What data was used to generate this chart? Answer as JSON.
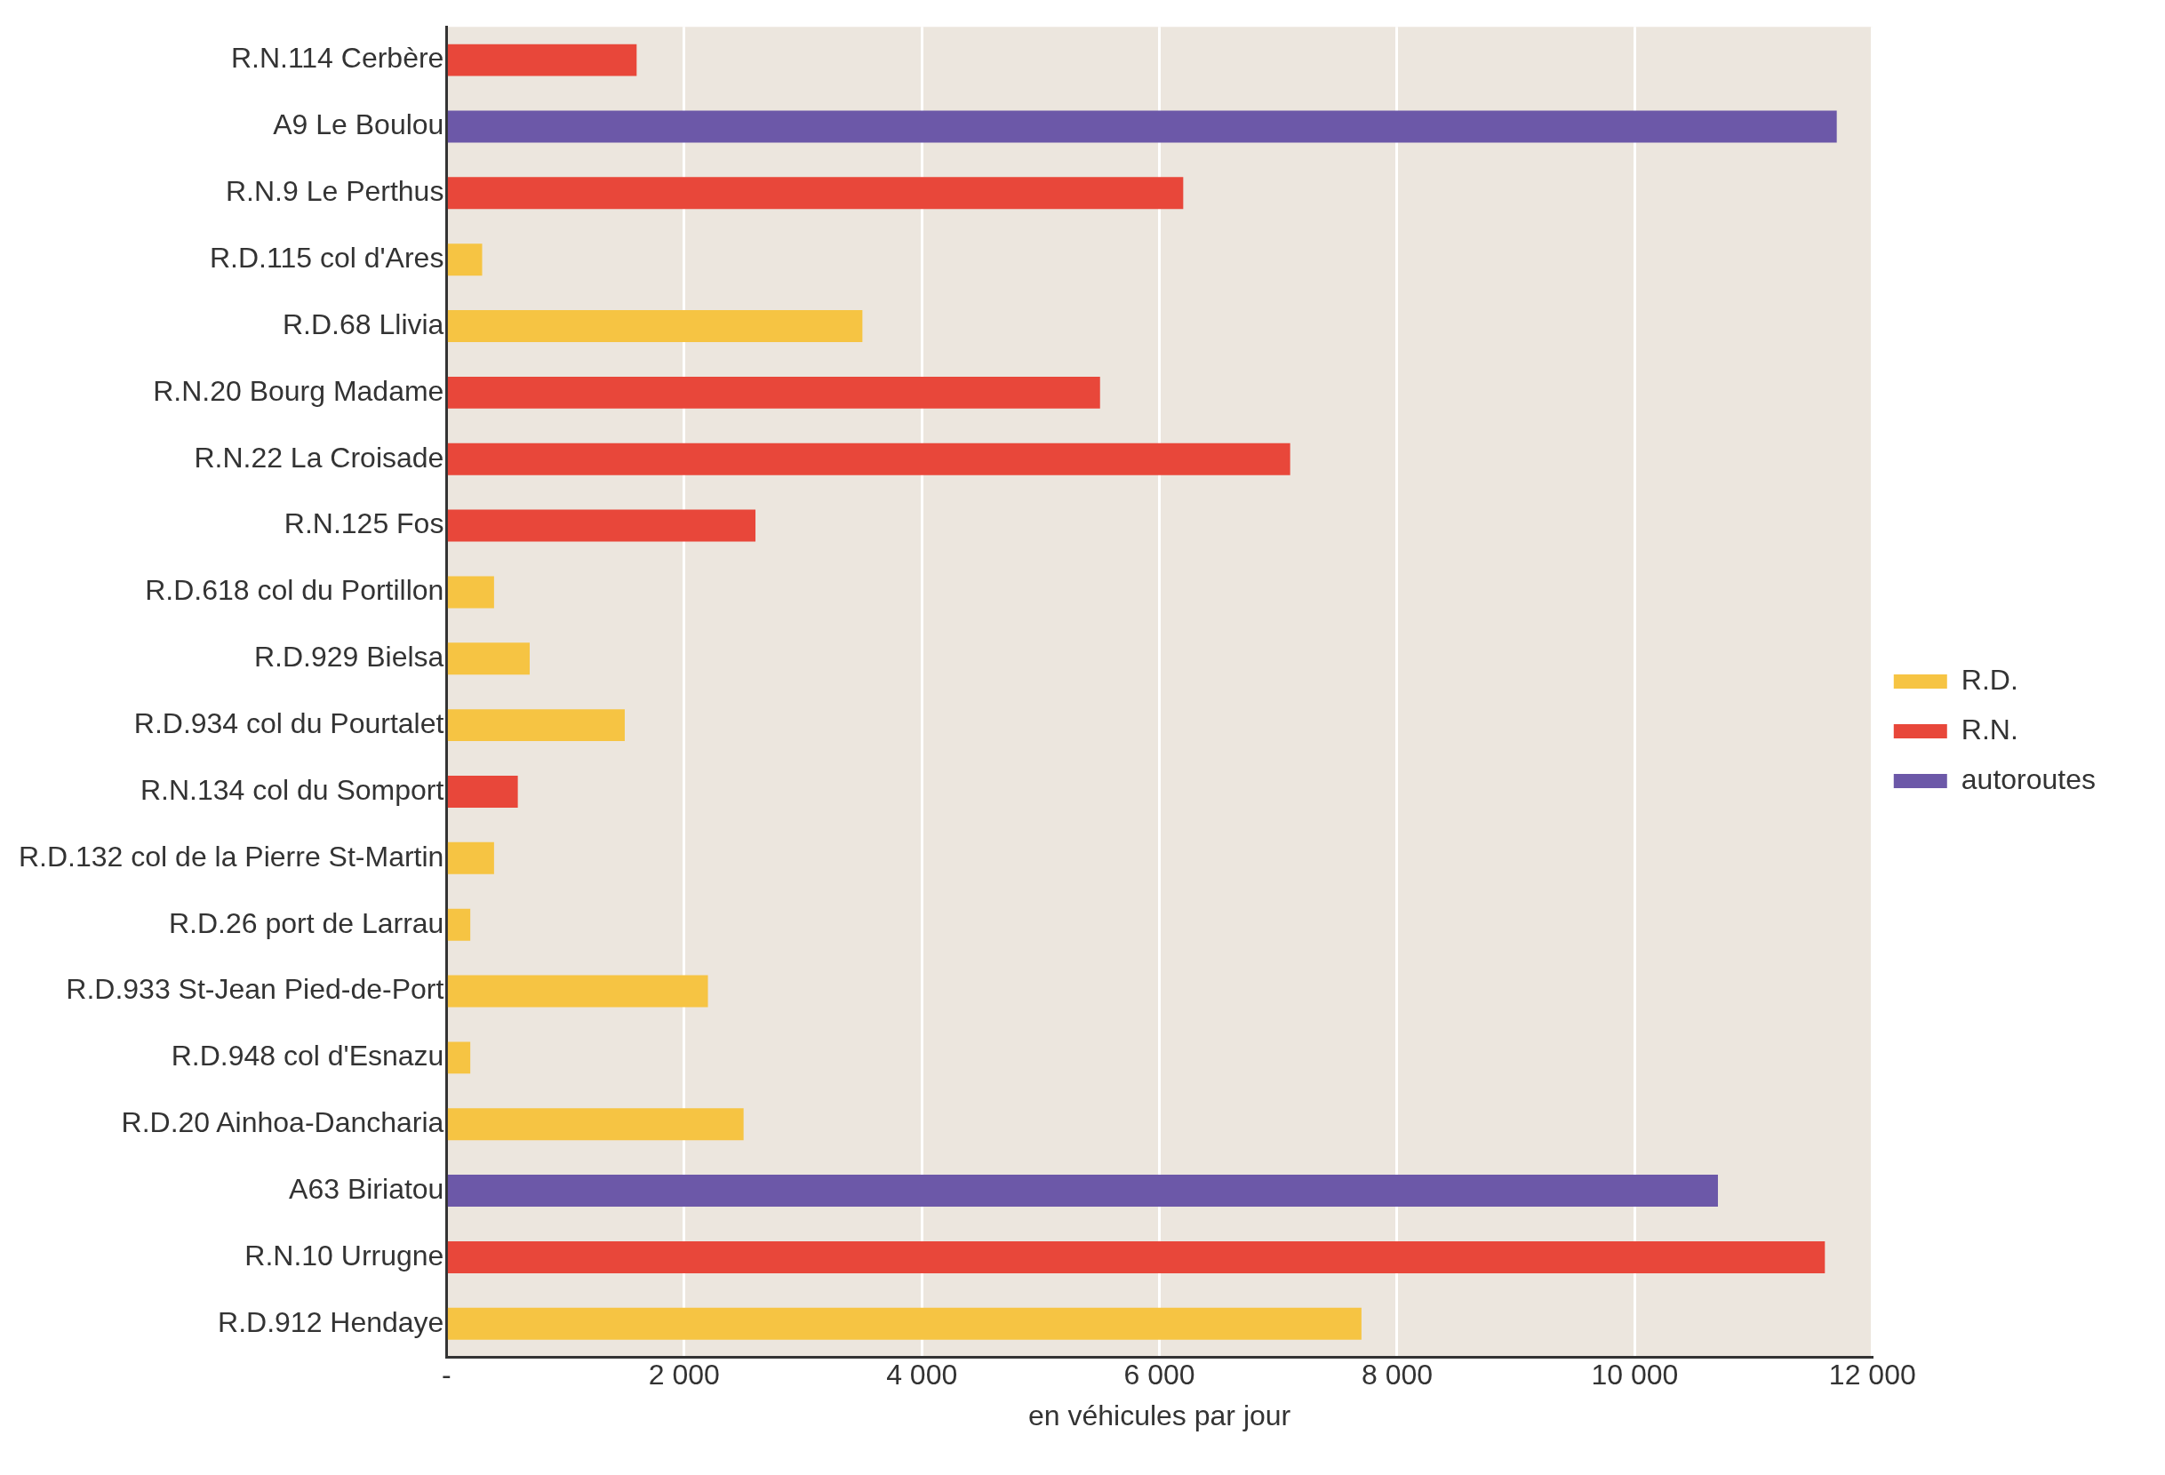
{
  "chart_data": {
    "type": "bar",
    "orientation": "horizontal",
    "stacked": true,
    "xlabel": "en véhicules par jour",
    "categories": [
      "R.N.114 Cerbère",
      "A9 Le Boulou",
      "R.N.9 Le Perthus",
      "R.D.115 col d'Ares",
      "R.D.68 Llivia",
      "R.N.20 Bourg Madame",
      "R.N.22 La Croisade",
      "R.N.125 Fos",
      "R.D.618 col du Portillon",
      "R.D.929 Bielsa",
      "R.D.934 col du Pourtalet",
      "R.N.134 col du Somport",
      "R.D.132 col de la Pierre St-Martin",
      "R.D.26 port de Larrau",
      "R.D.933 St-Jean Pied-de-Port",
      "R.D.948 col d'Esnazu",
      "R.D.20 Ainhoa-Dancharia",
      "A63 Biriatou",
      "R.N.10 Urrugne",
      "R.D.912 Hendaye"
    ],
    "series": [
      {
        "name": "R.D.",
        "color": "#f6c443",
        "values": [
          null,
          null,
          null,
          300,
          3500,
          null,
          null,
          null,
          400,
          700,
          1500,
          null,
          400,
          200,
          2200,
          200,
          2500,
          null,
          null,
          7700
        ]
      },
      {
        "name": "R.N.",
        "color": "#e8473a",
        "values": [
          1600,
          null,
          6200,
          null,
          null,
          5500,
          7100,
          2600,
          null,
          null,
          null,
          600,
          null,
          null,
          null,
          null,
          null,
          null,
          11600,
          null
        ]
      },
      {
        "name": "autoroutes",
        "color": "#6c58a8",
        "values": [
          null,
          11700,
          null,
          null,
          null,
          null,
          null,
          null,
          null,
          null,
          null,
          null,
          null,
          null,
          null,
          null,
          null,
          10700,
          null,
          null
        ]
      }
    ],
    "xlim": [
      0,
      12000
    ],
    "xticks": [
      {
        "value": 0,
        "label": "-"
      },
      {
        "value": 2000,
        "label": "2 000"
      },
      {
        "value": 4000,
        "label": "4 000"
      },
      {
        "value": 6000,
        "label": "6 000"
      },
      {
        "value": 8000,
        "label": "8 000"
      },
      {
        "value": 10000,
        "label": "10 000"
      },
      {
        "value": 12000,
        "label": "12 000"
      }
    ],
    "grid": "x",
    "legend": "right"
  }
}
